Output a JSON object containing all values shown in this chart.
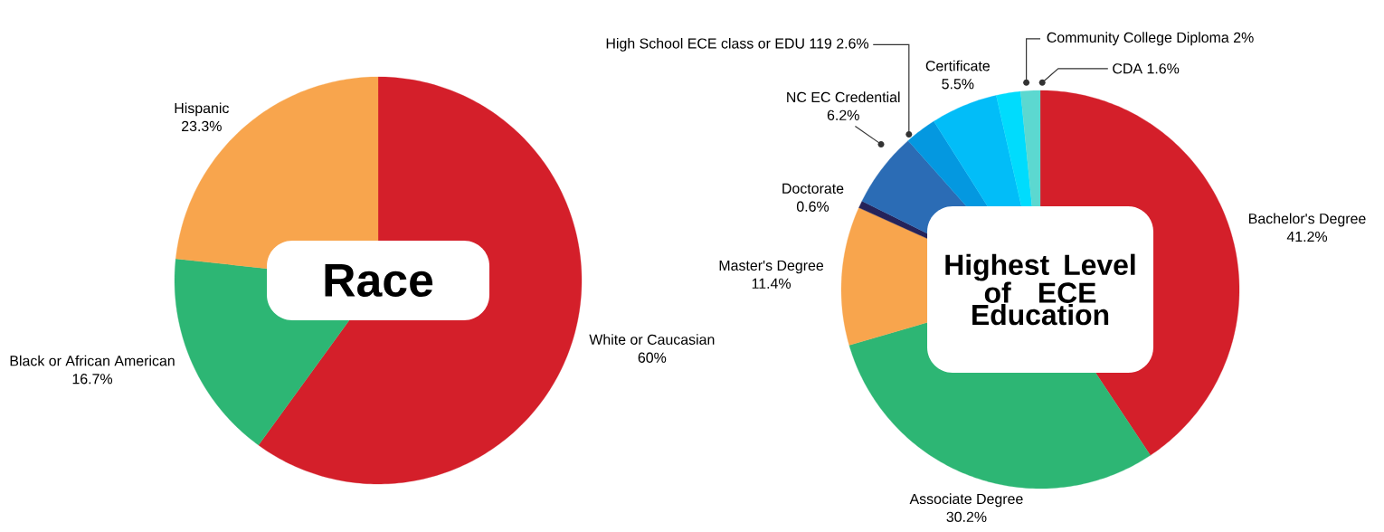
{
  "chart_data": [
    {
      "type": "pie",
      "title": "Race",
      "categories": [
        "White or Caucasian",
        "Black or African American",
        "Hispanic"
      ],
      "values": [
        60,
        16.7,
        23.3
      ],
      "colors": [
        "#d41f2a",
        "#2db674",
        "#f8a54d"
      ],
      "value_labels": [
        "60%",
        "16.7%",
        "23.3%"
      ]
    },
    {
      "type": "pie",
      "title": "Highest Level of ECE Education",
      "categories": [
        "Bachelor's Degree",
        "Associate Degree",
        "Master's Degree",
        "Doctorate",
        "NC EC Credential",
        "High School ECE class or EDU 119",
        "Certificate",
        "Community College Diploma",
        "CDA"
      ],
      "values": [
        41.2,
        30.2,
        11.4,
        0.6,
        6.2,
        2.6,
        5.5,
        2,
        1.6
      ],
      "colors": [
        "#d41f2a",
        "#2db674",
        "#f8a54d",
        "#25235a",
        "#2b6cb5",
        "#0498e0",
        "#02bdf8",
        "#00dcfd",
        "#5cd8d0"
      ],
      "value_labels": [
        "41.2%",
        "30.2%",
        "11.4%",
        "0.6%",
        "6.2%",
        "2.6%",
        "5.5%",
        "2%",
        "1.6%"
      ]
    }
  ]
}
